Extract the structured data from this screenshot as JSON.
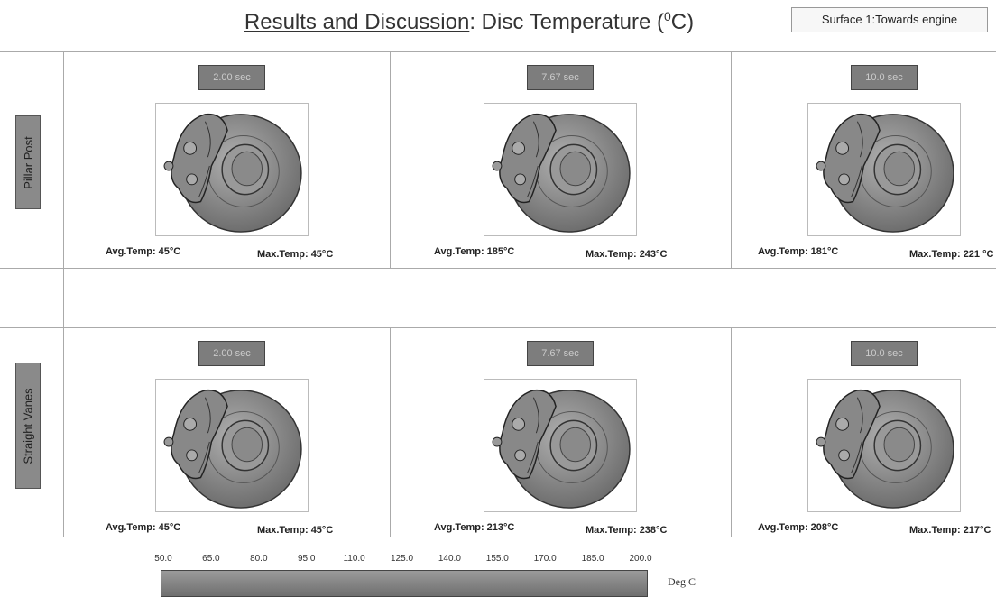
{
  "header": {
    "title_underlined": "Results and Discussion",
    "title_rest": ": Disc Temperature (",
    "title_sup": "0",
    "title_end": "C)",
    "surface_label": "Surface 1:Towards engine"
  },
  "rows": [
    {
      "label": "Pillar Post",
      "cells": [
        {
          "time": "2.00 sec",
          "avg": "Avg.Temp: 45°C",
          "max": "Max.Temp: 45°C"
        },
        {
          "time": "7.67 sec",
          "avg": "Avg.Temp: 185°C",
          "max": "Max.Temp: 243°C"
        },
        {
          "time": "10.0 sec",
          "avg": "Avg.Temp: 181°C",
          "max": "Max.Temp: 221 °C"
        }
      ]
    },
    {
      "label": "Straight Vanes",
      "cells": [
        {
          "time": "2.00 sec",
          "avg": "Avg.Temp: 45°C",
          "max": "Max.Temp: 45°C"
        },
        {
          "time": "7.67 sec",
          "avg": "Avg.Temp: 213°C",
          "max": "Max.Temp: 238°C"
        },
        {
          "time": "10.0 sec",
          "avg": "Avg.Temp: 208°C",
          "max": "Max.Temp: 217°C"
        }
      ]
    }
  ],
  "colorbar": {
    "ticks": [
      "50.0",
      "65.0",
      "80.0",
      "95.0",
      "110.0",
      "125.0",
      "140.0",
      "155.0",
      "170.0",
      "185.0",
      "200.0"
    ],
    "unit": "Deg C"
  }
}
